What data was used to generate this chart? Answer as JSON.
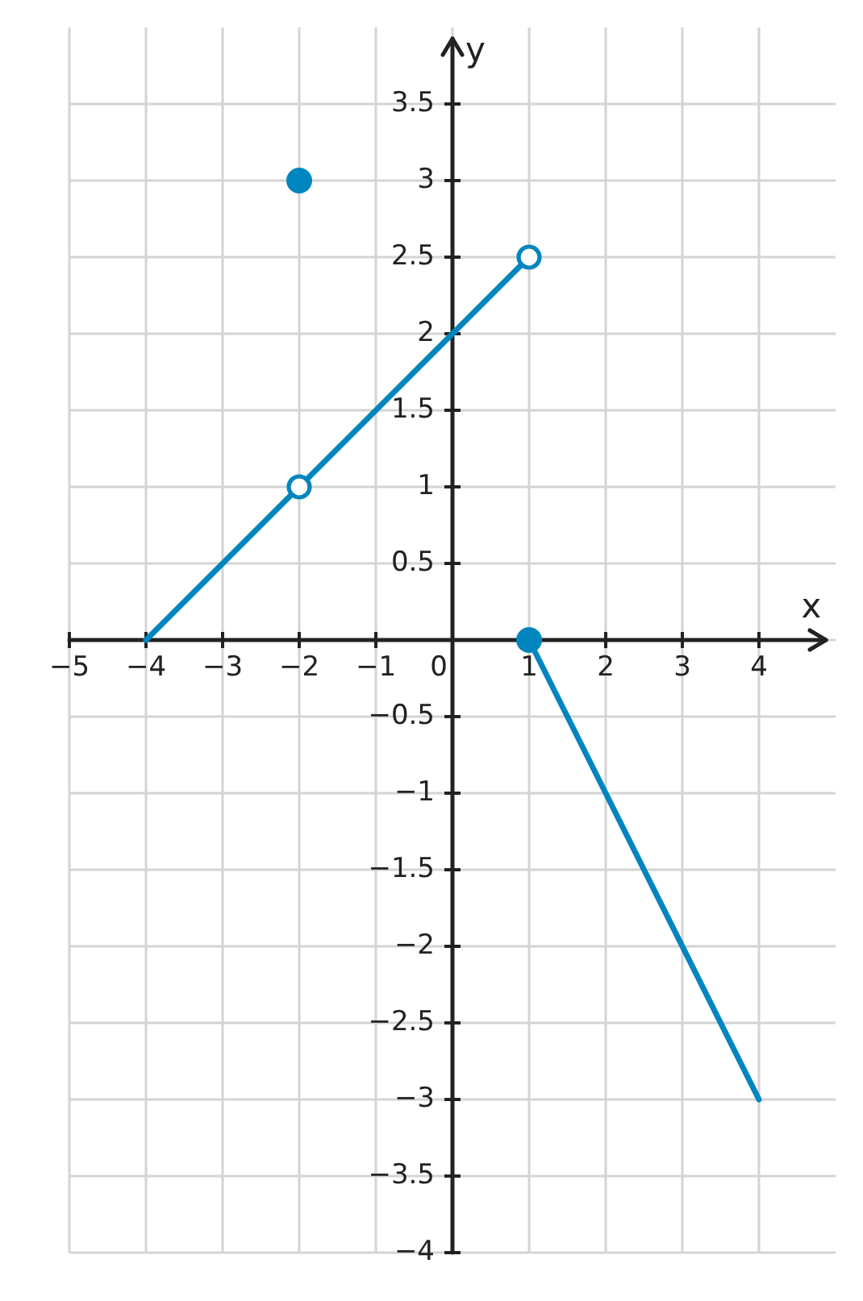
{
  "chart_data": {
    "type": "line",
    "xlabel": "x",
    "ylabel": "y",
    "xlim": [
      -5,
      5
    ],
    "ylim": [
      -4,
      4
    ],
    "xticks": [
      -5,
      -4,
      -3,
      -2,
      -1,
      0,
      1,
      2,
      3,
      4
    ],
    "yticks": [
      -4,
      -3.5,
      -3,
      -2.5,
      -2,
      -1.5,
      -1,
      -0.5,
      {
        "value": 0,
        "label": null
      },
      0.5,
      1,
      1.5,
      2,
      2.5,
      3,
      3.5
    ],
    "grid": true,
    "series": [
      {
        "type": "line",
        "color": "#0086bf",
        "x": [
          -4,
          1
        ],
        "values": [
          0,
          2.5
        ]
      },
      {
        "type": "line",
        "color": "#0086bf",
        "x": [
          1,
          4
        ],
        "values": [
          0,
          -3
        ]
      },
      {
        "type": "scatter",
        "color": "#0086bf",
        "x": [
          -2,
          1
        ],
        "values": [
          3,
          0
        ],
        "marker": "circle"
      },
      {
        "type": "scatter",
        "color": "#0086bf",
        "colors": [
          "#ffffff",
          "#ffffff"
        ],
        "x": [
          -2,
          1
        ],
        "values": [
          1,
          2.5
        ],
        "marker": "circle"
      }
    ]
  }
}
